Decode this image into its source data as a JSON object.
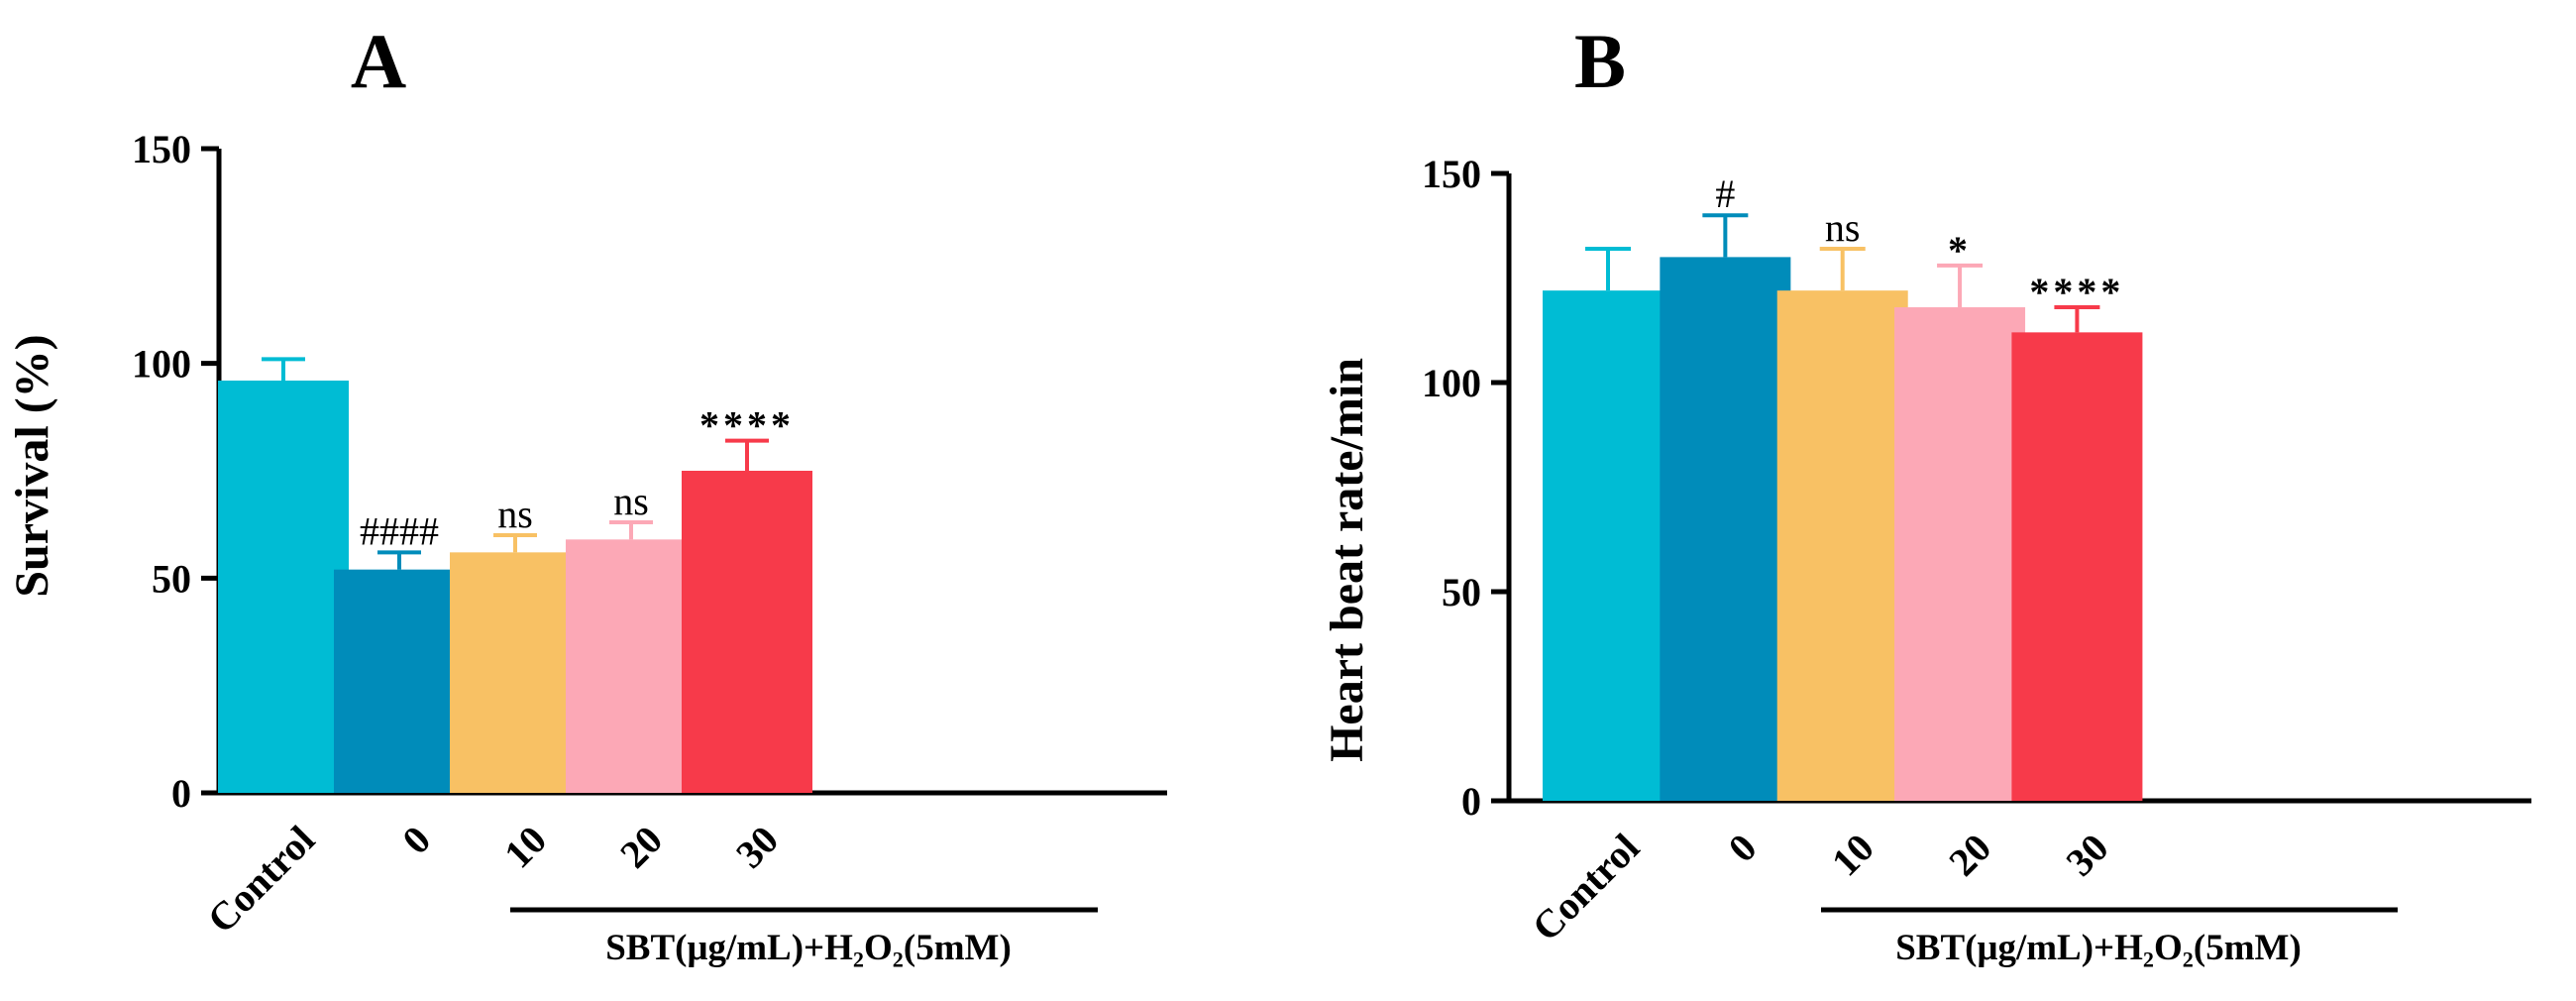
{
  "chart_data": [
    {
      "type": "bar",
      "panel": "A",
      "ylabel": "Survival (%)",
      "ylim": [
        0,
        150
      ],
      "yticks": [
        0,
        50,
        100,
        150
      ],
      "categories": [
        "Control",
        "0",
        "10",
        "20",
        "30"
      ],
      "values": [
        96,
        52,
        56,
        59,
        75
      ],
      "errors": [
        5,
        4,
        4,
        4,
        7
      ],
      "colors": [
        "#00BCD4",
        "#008CBA",
        "#F8C164",
        "#FCA8B6",
        "#F73A4A"
      ],
      "annotations": [
        "",
        "####",
        "ns",
        "ns",
        "****"
      ],
      "group_label": "SBT(μg/mL)+H₂O₂(5mM)"
    },
    {
      "type": "bar",
      "panel": "B",
      "ylabel": "Heart beat rate/min",
      "ylim": [
        0,
        150
      ],
      "yticks": [
        0,
        50,
        100,
        150
      ],
      "categories": [
        "Control",
        "0",
        "10",
        "20",
        "30"
      ],
      "values": [
        122,
        130,
        122,
        118,
        112
      ],
      "errors": [
        10,
        10,
        10,
        10,
        6
      ],
      "colors": [
        "#00BCD4",
        "#008CBA",
        "#F8C164",
        "#FCA8B6",
        "#F73A4A"
      ],
      "annotations": [
        "",
        "#",
        "ns",
        "*",
        "****"
      ],
      "group_label": "SBT(μg/mL)+H₂O₂(5mM)"
    }
  ]
}
